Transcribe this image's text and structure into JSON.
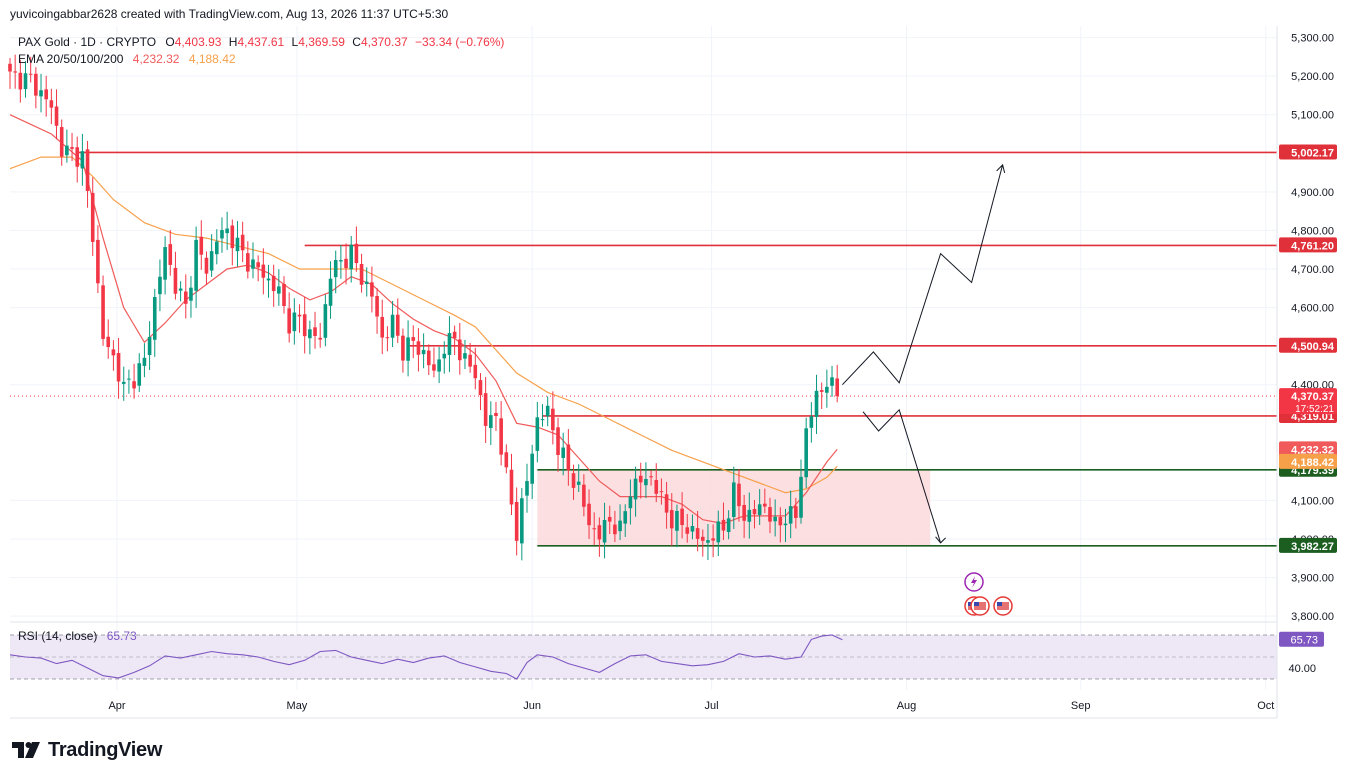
{
  "header": {
    "author_line": "yuvicoingabbar2628 created with TradingView.com, Aug 13, 2026 11:37 UTC+5:30",
    "symbol_line": "PAX Gold · 1D · CRYPTO",
    "ohlc": {
      "o_label": "O",
      "o": "4,403.93",
      "h_label": "H",
      "h": "4,437.61",
      "l_label": "L",
      "l": "4,369.59",
      "c_label": "C",
      "c": "4,370.37",
      "chg": "−33.34 (−0.76%)"
    },
    "ema_label": "EMA 20/50/100/200",
    "ema_values": [
      "4,232.32",
      "4,188.42"
    ]
  },
  "colors": {
    "up": "#089981",
    "down": "#f23645",
    "ema20": "#f05a5a",
    "ema50": "#f7a04a",
    "resistance": "#e0303a",
    "support": "#1b5e20",
    "box": "#fcd9dc",
    "rsi": "#7e57c2",
    "rsi_band": "#ede7f6"
  },
  "chart_data": [
    {
      "type": "candlestick",
      "title": "PAX Gold · 1D · CRYPTO",
      "x_ticks": [
        "Apr",
        "May",
        "Jun",
        "Jul",
        "Aug",
        "Sep",
        "Oct"
      ],
      "y_ticks": [
        "5,300.00",
        "5,200.00",
        "5,100.00",
        "4,900.00",
        "4,800.00",
        "4,700.00",
        "4,600.00",
        "4,400.00",
        "4,100.00",
        "4,000.00",
        "3,900.00",
        "3,800.00"
      ],
      "y_range": [
        3790,
        5330
      ],
      "anchors": [
        {
          "d": 0,
          "c": 5200
        },
        {
          "d": 4,
          "c": 5190
        },
        {
          "d": 8,
          "c": 5120
        },
        {
          "d": 10,
          "c": 5010
        },
        {
          "d": 12,
          "c": 5000
        },
        {
          "d": 14,
          "c": 4990
        },
        {
          "d": 16,
          "c": 4790
        },
        {
          "d": 18,
          "c": 4520
        },
        {
          "d": 20,
          "c": 4470
        },
        {
          "d": 22,
          "c": 4390
        },
        {
          "d": 24,
          "c": 4420
        },
        {
          "d": 26,
          "c": 4460
        },
        {
          "d": 28,
          "c": 4620
        },
        {
          "d": 30,
          "c": 4750
        },
        {
          "d": 32,
          "c": 4660
        },
        {
          "d": 34,
          "c": 4600
        },
        {
          "d": 36,
          "c": 4760
        },
        {
          "d": 38,
          "c": 4700
        },
        {
          "d": 40,
          "c": 4780
        },
        {
          "d": 42,
          "c": 4800
        },
        {
          "d": 44,
          "c": 4760
        },
        {
          "d": 46,
          "c": 4720
        },
        {
          "d": 48,
          "c": 4700
        },
        {
          "d": 50,
          "c": 4670
        },
        {
          "d": 52,
          "c": 4640
        },
        {
          "d": 54,
          "c": 4560
        },
        {
          "d": 56,
          "c": 4570
        },
        {
          "d": 58,
          "c": 4530
        },
        {
          "d": 60,
          "c": 4520
        },
        {
          "d": 62,
          "c": 4690
        },
        {
          "d": 64,
          "c": 4720
        },
        {
          "d": 66,
          "c": 4740
        },
        {
          "d": 68,
          "c": 4680
        },
        {
          "d": 70,
          "c": 4630
        },
        {
          "d": 72,
          "c": 4520
        },
        {
          "d": 74,
          "c": 4560
        },
        {
          "d": 76,
          "c": 4490
        },
        {
          "d": 78,
          "c": 4510
        },
        {
          "d": 80,
          "c": 4480
        },
        {
          "d": 82,
          "c": 4430
        },
        {
          "d": 84,
          "c": 4500
        },
        {
          "d": 86,
          "c": 4520
        },
        {
          "d": 88,
          "c": 4460
        },
        {
          "d": 90,
          "c": 4430
        },
        {
          "d": 92,
          "c": 4300
        },
        {
          "d": 94,
          "c": 4320
        },
        {
          "d": 96,
          "c": 4160
        },
        {
          "d": 98,
          "c": 4020
        },
        {
          "d": 100,
          "c": 4150
        },
        {
          "d": 102,
          "c": 4310
        },
        {
          "d": 104,
          "c": 4330
        },
        {
          "d": 106,
          "c": 4240
        },
        {
          "d": 108,
          "c": 4180
        },
        {
          "d": 110,
          "c": 4130
        },
        {
          "d": 112,
          "c": 4040
        },
        {
          "d": 114,
          "c": 4010
        },
        {
          "d": 116,
          "c": 4050
        },
        {
          "d": 118,
          "c": 4020
        },
        {
          "d": 120,
          "c": 4130
        },
        {
          "d": 122,
          "c": 4150
        },
        {
          "d": 124,
          "c": 4160
        },
        {
          "d": 126,
          "c": 4100
        },
        {
          "d": 128,
          "c": 4050
        },
        {
          "d": 130,
          "c": 4040
        },
        {
          "d": 132,
          "c": 4020
        },
        {
          "d": 134,
          "c": 3990
        },
        {
          "d": 136,
          "c": 4010
        },
        {
          "d": 138,
          "c": 4030
        },
        {
          "d": 140,
          "c": 4120
        },
        {
          "d": 142,
          "c": 4060
        },
        {
          "d": 144,
          "c": 4070
        },
        {
          "d": 146,
          "c": 4090
        },
        {
          "d": 148,
          "c": 4030
        },
        {
          "d": 150,
          "c": 4060
        },
        {
          "d": 152,
          "c": 4060
        },
        {
          "d": 154,
          "c": 4280
        },
        {
          "d": 156,
          "c": 4370
        },
        {
          "d": 158,
          "c": 4410
        },
        {
          "d": 160,
          "c": 4370
        }
      ],
      "ema20_points": [
        [
          0,
          5100
        ],
        [
          8,
          5050
        ],
        [
          14,
          4980
        ],
        [
          18,
          4780
        ],
        [
          22,
          4600
        ],
        [
          26,
          4510
        ],
        [
          30,
          4560
        ],
        [
          34,
          4620
        ],
        [
          38,
          4660
        ],
        [
          42,
          4700
        ],
        [
          46,
          4710
        ],
        [
          50,
          4690
        ],
        [
          54,
          4650
        ],
        [
          58,
          4620
        ],
        [
          62,
          4640
        ],
        [
          66,
          4680
        ],
        [
          70,
          4660
        ],
        [
          74,
          4610
        ],
        [
          78,
          4570
        ],
        [
          82,
          4540
        ],
        [
          86,
          4520
        ],
        [
          90,
          4480
        ],
        [
          94,
          4410
        ],
        [
          98,
          4300
        ],
        [
          102,
          4290
        ],
        [
          106,
          4270
        ],
        [
          110,
          4210
        ],
        [
          114,
          4150
        ],
        [
          118,
          4110
        ],
        [
          122,
          4110
        ],
        [
          126,
          4110
        ],
        [
          130,
          4090
        ],
        [
          134,
          4050
        ],
        [
          138,
          4040
        ],
        [
          142,
          4060
        ],
        [
          146,
          4060
        ],
        [
          150,
          4060
        ],
        [
          154,
          4120
        ],
        [
          158,
          4200
        ],
        [
          160,
          4232.32
        ]
      ],
      "ema50_points": [
        [
          0,
          4960
        ],
        [
          6,
          4990
        ],
        [
          12,
          4990
        ],
        [
          16,
          4940
        ],
        [
          20,
          4880
        ],
        [
          26,
          4820
        ],
        [
          32,
          4790
        ],
        [
          38,
          4780
        ],
        [
          44,
          4760
        ],
        [
          50,
          4740
        ],
        [
          56,
          4700
        ],
        [
          62,
          4700
        ],
        [
          68,
          4700
        ],
        [
          74,
          4660
        ],
        [
          80,
          4620
        ],
        [
          86,
          4580
        ],
        [
          90,
          4550
        ],
        [
          94,
          4490
        ],
        [
          98,
          4430
        ],
        [
          104,
          4380
        ],
        [
          110,
          4350
        ],
        [
          116,
          4310
        ],
        [
          122,
          4270
        ],
        [
          128,
          4230
        ],
        [
          134,
          4200
        ],
        [
          140,
          4170
        ],
        [
          146,
          4140
        ],
        [
          150,
          4120
        ],
        [
          154,
          4130
        ],
        [
          158,
          4160
        ],
        [
          160,
          4188.42
        ]
      ],
      "levels": [
        {
          "value": 5002.17,
          "label": "5,002.17",
          "kind": "resistance",
          "from_day": 13
        },
        {
          "value": 4761.2,
          "label": "4,761.20",
          "kind": "resistance",
          "from_day": 57
        },
        {
          "value": 4500.94,
          "label": "4,500.94",
          "kind": "resistance",
          "from_day": 77
        },
        {
          "value": 4319.01,
          "label": "4,319.01",
          "kind": "resistance",
          "from_day": 103
        },
        {
          "value": 4179.39,
          "label": "4,179.39",
          "kind": "support",
          "from_day": 102
        },
        {
          "value": 3982.27,
          "label": "3,982.27",
          "kind": "support",
          "from_day": 102
        }
      ],
      "range_box": {
        "from_day": 102,
        "to_day": 178,
        "low": 3982.27,
        "high": 4179.39
      },
      "badges": {
        "last_price": "4,370.37",
        "countdown": "17:52:21",
        "ema20": "4,232.32",
        "ema50": "4,188.42"
      },
      "projection_up": [
        [
          161,
          4400
        ],
        [
          167,
          4485
        ],
        [
          172,
          4405
        ],
        [
          180,
          4740
        ],
        [
          186,
          4665
        ],
        [
          192,
          4970
        ]
      ],
      "projection_down": [
        [
          165,
          4330
        ],
        [
          168,
          4280
        ],
        [
          172,
          4335
        ],
        [
          180,
          3990
        ]
      ]
    },
    {
      "type": "line",
      "title": "RSI (14, close)",
      "value_label": "65.73",
      "y_ticks": [
        "40.00"
      ],
      "y_range": [
        20,
        80
      ],
      "bands": [
        70,
        50,
        30
      ],
      "points": [
        [
          0,
          52
        ],
        [
          3,
          50
        ],
        [
          6,
          49
        ],
        [
          9,
          44
        ],
        [
          12,
          47
        ],
        [
          15,
          40
        ],
        [
          18,
          33
        ],
        [
          21,
          31
        ],
        [
          24,
          36
        ],
        [
          27,
          42
        ],
        [
          30,
          51
        ],
        [
          33,
          49
        ],
        [
          36,
          52
        ],
        [
          39,
          55
        ],
        [
          42,
          53
        ],
        [
          45,
          52
        ],
        [
          48,
          50
        ],
        [
          51,
          46
        ],
        [
          54,
          43
        ],
        [
          57,
          47
        ],
        [
          60,
          55
        ],
        [
          63,
          56
        ],
        [
          66,
          50
        ],
        [
          69,
          47
        ],
        [
          72,
          44
        ],
        [
          75,
          48
        ],
        [
          78,
          45
        ],
        [
          81,
          49
        ],
        [
          84,
          51
        ],
        [
          87,
          45
        ],
        [
          90,
          41
        ],
        [
          93,
          37
        ],
        [
          96,
          35
        ],
        [
          98,
          30
        ],
        [
          100,
          45
        ],
        [
          102,
          52
        ],
        [
          105,
          50
        ],
        [
          108,
          44
        ],
        [
          111,
          40
        ],
        [
          114,
          36
        ],
        [
          117,
          44
        ],
        [
          120,
          51
        ],
        [
          123,
          52
        ],
        [
          126,
          46
        ],
        [
          129,
          44
        ],
        [
          132,
          42
        ],
        [
          135,
          43
        ],
        [
          138,
          46
        ],
        [
          141,
          53
        ],
        [
          144,
          50
        ],
        [
          147,
          51
        ],
        [
          150,
          48
        ],
        [
          153,
          50
        ],
        [
          155,
          66
        ],
        [
          157,
          69
        ],
        [
          159,
          70
        ],
        [
          161,
          65.73
        ]
      ]
    }
  ],
  "rsi_legend": {
    "label": "RSI (14, close)",
    "value": "65.73"
  },
  "brand": {
    "name": "TradingView"
  }
}
